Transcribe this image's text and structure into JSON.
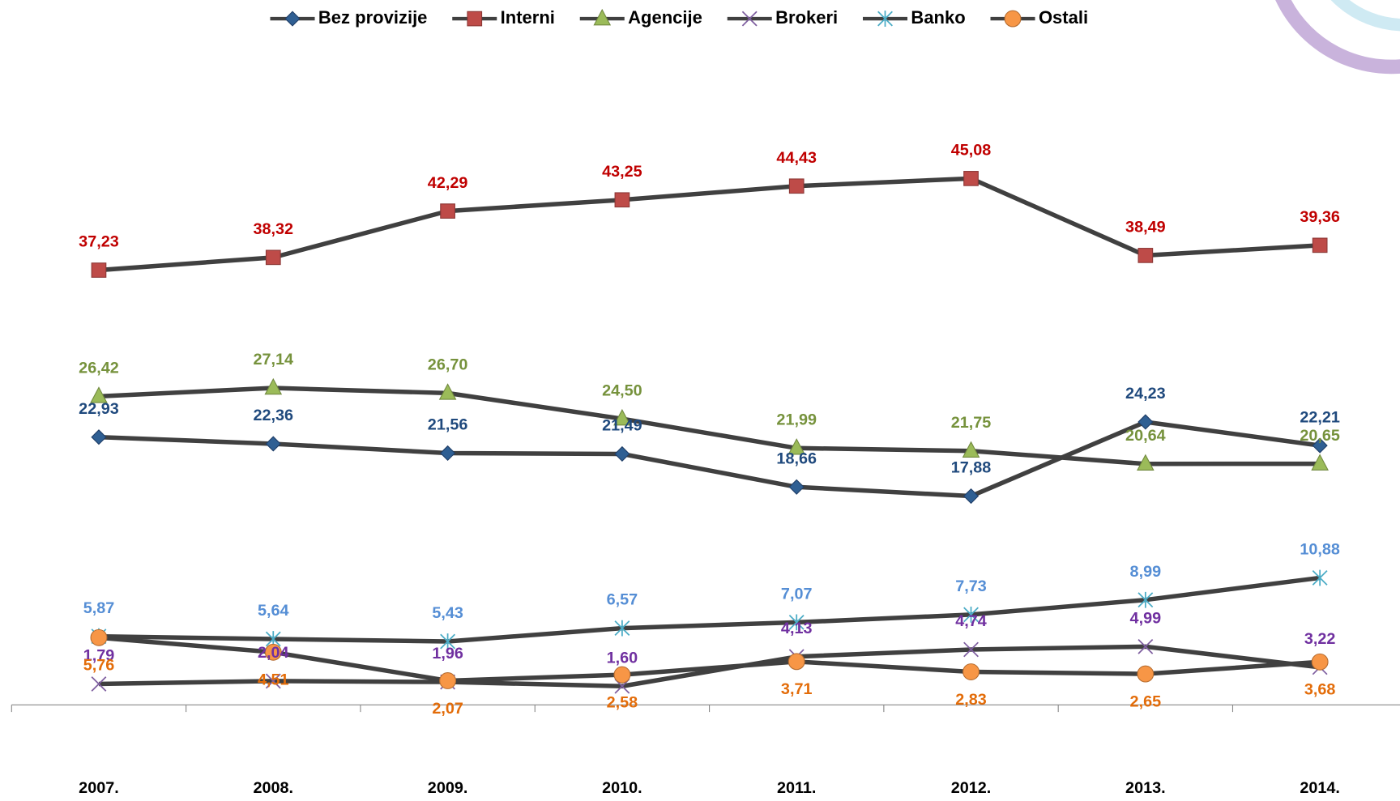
{
  "chart_data": {
    "type": "line",
    "categories": [
      "2007.",
      "2008.",
      "2009.",
      "2010.",
      "2011.",
      "2012.",
      "2013.",
      "2014."
    ],
    "ylim": [
      0,
      50
    ],
    "line_color": "#404040",
    "legend": "top",
    "series": [
      {
        "name": "Bez provizije",
        "marker": "diamond",
        "color": "#2f5f93",
        "label_color": "#1f497d",
        "values": [
          22.93,
          22.36,
          21.56,
          21.49,
          18.66,
          17.88,
          24.23,
          22.21
        ],
        "value_labels": [
          "22,93",
          "22,36",
          "21,56",
          "21,49",
          "18,66",
          "17,88",
          "24,23",
          "22,21"
        ]
      },
      {
        "name": "Interni",
        "marker": "square",
        "color": "#be4b48",
        "label_color": "#c00000",
        "values": [
          37.23,
          38.32,
          42.29,
          43.25,
          44.43,
          45.08,
          38.49,
          39.36
        ],
        "value_labels": [
          "37,23",
          "38,32",
          "42,29",
          "43,25",
          "44,43",
          "45,08",
          "38,49",
          "39,36"
        ]
      },
      {
        "name": "Agencije",
        "marker": "triangle",
        "color": "#9bbb59",
        "label_color": "#76923c",
        "values": [
          26.42,
          27.14,
          26.7,
          24.5,
          21.99,
          21.75,
          20.64,
          20.65
        ],
        "value_labels": [
          "26,42",
          "27,14",
          "26,70",
          "24,50",
          "21,99",
          "21,75",
          "20,64",
          "20,65"
        ]
      },
      {
        "name": "Brokeri",
        "marker": "x",
        "color": "#7f5fa0",
        "label_color": "#7030a0",
        "values": [
          1.79,
          2.04,
          1.96,
          1.6,
          4.13,
          4.74,
          4.99,
          3.22
        ],
        "value_labels": [
          "1,79",
          "2,04",
          "1,96",
          "1,60",
          "4,13",
          "4,74",
          "4,99",
          "3,22"
        ]
      },
      {
        "name": "Banko",
        "marker": "star",
        "color": "#4bacc6",
        "label_color": "#558ed5",
        "values": [
          5.87,
          5.64,
          5.43,
          6.57,
          7.07,
          7.73,
          8.99,
          10.88
        ],
        "value_labels": [
          "5,87",
          "5,64",
          "5,43",
          "6,57",
          "7,07",
          "7,73",
          "8,99",
          "10,88"
        ]
      },
      {
        "name": "Ostali",
        "marker": "circle",
        "color": "#f79646",
        "label_color": "#e36c09",
        "values": [
          5.76,
          4.51,
          2.07,
          2.58,
          3.71,
          2.83,
          2.65,
          3.68
        ],
        "value_labels": [
          "5,76",
          "4,51",
          "2,07",
          "2,58",
          "3,71",
          "2,83",
          "2,65",
          "3,68"
        ]
      }
    ]
  }
}
